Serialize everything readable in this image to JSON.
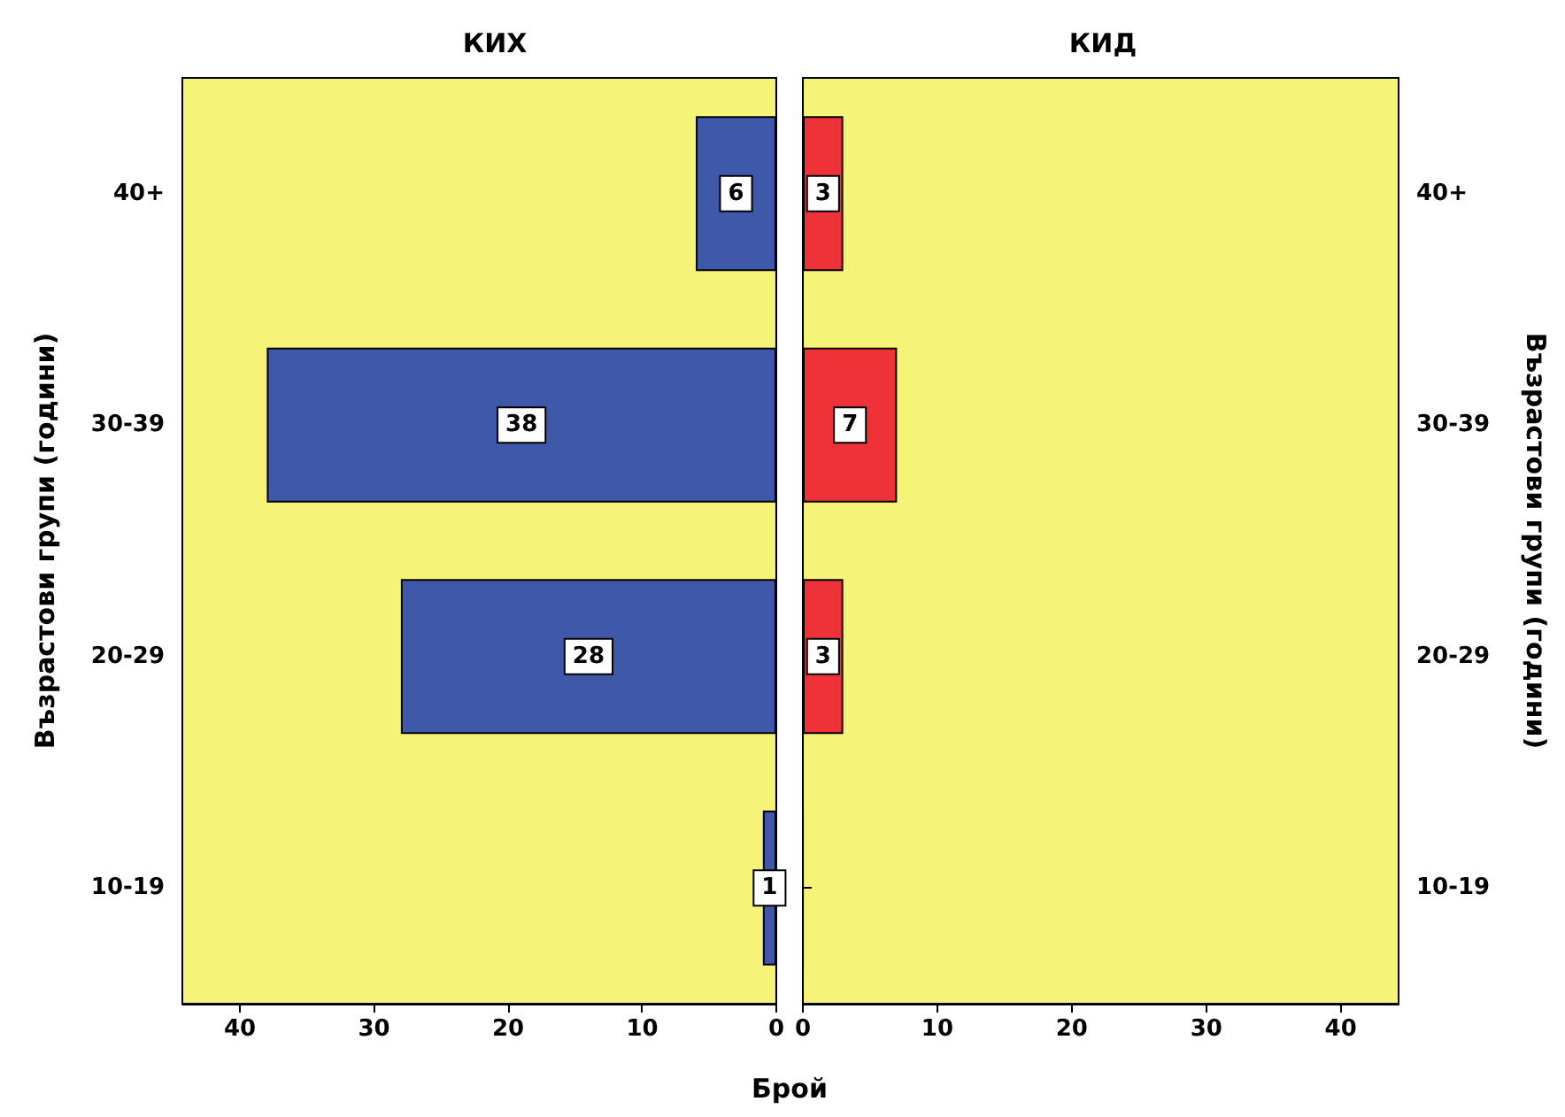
{
  "chart_data": [
    {
      "type": "bar",
      "orientation": "horizontal",
      "title": "КИХ",
      "ylabel": "Възрастови групи (години)",
      "xlabel": "Брой",
      "categories": [
        "40+",
        "30-39",
        "20-29",
        "10-19"
      ],
      "values": [
        6,
        38,
        28,
        1
      ],
      "color": "#3f58aa",
      "xlim": [
        44.3,
        0
      ],
      "xticks": [
        40,
        30,
        20,
        10,
        0
      ],
      "data_labels": true
    },
    {
      "type": "bar",
      "orientation": "horizontal",
      "title": "КИД",
      "ylabel": "Възрастови групи (години)",
      "categories": [
        "40+",
        "30-39",
        "20-29",
        "10-19"
      ],
      "values": [
        3,
        7,
        3,
        0
      ],
      "value_labels": [
        "3",
        "7",
        "3",
        null
      ],
      "color": "#ee3237",
      "xlim": [
        0,
        44.3
      ],
      "xticks": [
        0,
        10,
        20,
        30,
        40
      ]
    }
  ]
}
